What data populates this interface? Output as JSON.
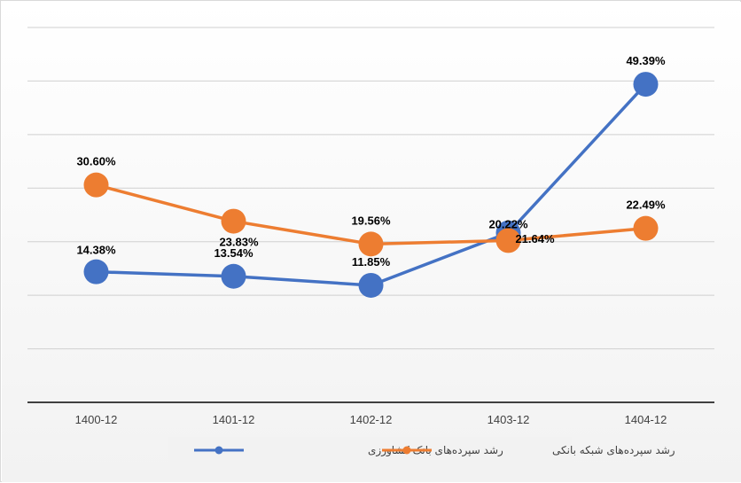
{
  "chart_data": {
    "type": "line",
    "categories": [
      "1400-12",
      "1401-12",
      "1402-12",
      "1403-12",
      "1404-12"
    ],
    "series": [
      {
        "name": "رشد سپرده‌های بانک کشاورزی",
        "color": "#4472C4",
        "values": [
          14.38,
          13.54,
          11.85,
          21.64,
          49.39
        ],
        "labels": [
          "14.38%",
          "13.54%",
          "11.85%",
          "21.64%",
          "49.39%"
        ]
      },
      {
        "name": "رشد سپرده‌های شبکه بانکی",
        "color": "#ED7D31",
        "values": [
          30.6,
          23.83,
          19.56,
          20.22,
          22.49
        ],
        "labels": [
          "30.60%",
          "23.83%",
          "19.56%",
          "20.22%",
          "22.49%"
        ]
      }
    ],
    "ylim": [
      -10,
      60
    ],
    "grid": true,
    "background": "#f2f2f2",
    "legend_position": "bottom",
    "title": "",
    "xlabel": "",
    "ylabel": ""
  }
}
